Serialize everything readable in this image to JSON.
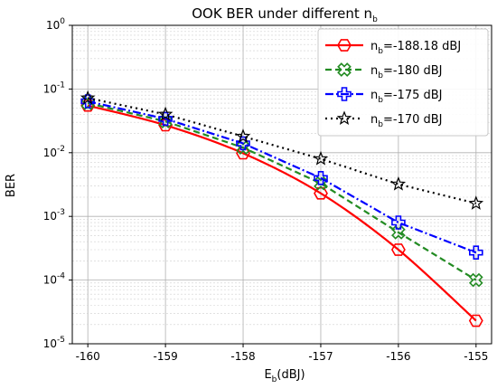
{
  "chart_data": {
    "type": "line",
    "title": {
      "prefix": "OOK BER under different n",
      "sub": "b"
    },
    "xlabel": {
      "prefix": "E",
      "sub": "b",
      "suffix": "(dBJ)"
    },
    "ylabel": "BER",
    "x": [
      -160,
      -159,
      -158,
      -157,
      -156,
      -155
    ],
    "xlim": [
      -160.2,
      -154.8
    ],
    "ylim": [
      1e-05,
      1
    ],
    "yscale": "log",
    "xticks": [
      "-160",
      "-159",
      "-158",
      "-157",
      "-156",
      "-155"
    ],
    "yticks": [
      {
        "base": "10",
        "exp": "-5",
        "value": 1e-05
      },
      {
        "base": "10",
        "exp": "-4",
        "value": 0.0001
      },
      {
        "base": "10",
        "exp": "-3",
        "value": 0.001
      },
      {
        "base": "10",
        "exp": "-2",
        "value": 0.01
      },
      {
        "base": "10",
        "exp": "-1",
        "value": 0.1
      },
      {
        "base": "10",
        "exp": "0",
        "value": 1
      }
    ],
    "grid": true,
    "legend_position": "top-right",
    "series": [
      {
        "name_prefix": "n",
        "name_sub": "b",
        "name_suffix": "=-188.18 dBJ",
        "values": [
          0.055,
          0.027,
          0.0098,
          0.0023,
          0.0003,
          2.3e-05
        ],
        "color": "#ff0000",
        "dash": "solid",
        "marker": "hexagon"
      },
      {
        "name_prefix": "n",
        "name_sub": "b",
        "name_suffix": "=-180 dBJ",
        "values": [
          0.06,
          0.031,
          0.012,
          0.0033,
          0.00056,
          0.0001
        ],
        "color": "#228B22",
        "dash": "dashed",
        "marker": "x-cross"
      },
      {
        "name_prefix": "n",
        "name_sub": "b",
        "name_suffix": "=-175 dBJ",
        "values": [
          0.064,
          0.034,
          0.014,
          0.004,
          0.0008,
          0.00027
        ],
        "color": "#0000ff",
        "dash": "dashdot",
        "marker": "plus"
      },
      {
        "name_prefix": "n",
        "name_sub": "b",
        "name_suffix": "=-170 dBJ",
        "values": [
          0.072,
          0.04,
          0.018,
          0.008,
          0.0032,
          0.0016
        ],
        "color": "#000000",
        "dash": "dotted",
        "marker": "star"
      }
    ]
  }
}
